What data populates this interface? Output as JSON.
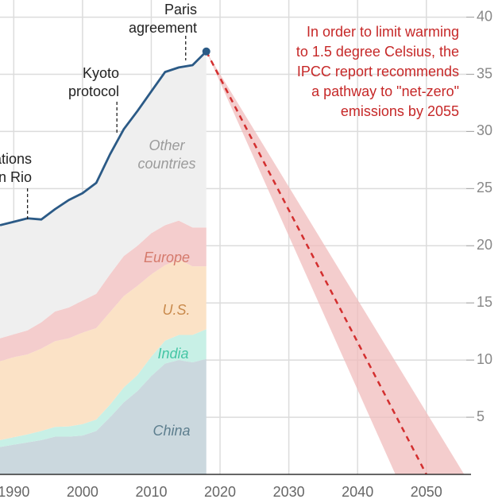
{
  "chart_data": {
    "type": "stacked-area",
    "x": [
      1988,
      1990,
      1992,
      1994,
      1996,
      1998,
      2000,
      2002,
      2004,
      2006,
      2008,
      2010,
      2012,
      2014,
      2016,
      2018
    ],
    "series": [
      {
        "name": "China",
        "color": "#cbd8de",
        "label_color": "#5d7e8e",
        "values": [
          2.4,
          2.6,
          2.8,
          3.0,
          3.3,
          3.3,
          3.4,
          3.8,
          5.0,
          6.3,
          7.3,
          8.6,
          9.7,
          10.0,
          9.8,
          10.1
        ]
      },
      {
        "name": "India",
        "color": "#c8f0e6",
        "label_color": "#45c6a5",
        "values": [
          0.6,
          0.65,
          0.7,
          0.8,
          0.85,
          0.9,
          1.0,
          1.0,
          1.1,
          1.3,
          1.4,
          1.7,
          2.0,
          2.2,
          2.4,
          2.6
        ]
      },
      {
        "name": "U.S.",
        "color": "#fbe2c6",
        "label_color": "#c98a4c",
        "values": [
          6.9,
          7.0,
          7.0,
          7.2,
          7.5,
          7.7,
          8.0,
          8.0,
          8.1,
          8.0,
          7.8,
          7.2,
          6.6,
          6.6,
          6.0,
          5.5
        ]
      },
      {
        "name": "Europe",
        "color": "#f4cdcd",
        "label_color": "#d57a6c",
        "values": [
          2.0,
          2.0,
          2.1,
          2.3,
          2.6,
          2.7,
          2.8,
          3.0,
          3.3,
          3.5,
          3.5,
          3.6,
          3.5,
          3.4,
          3.4,
          3.4
        ]
      },
      {
        "name": "Other countries",
        "color": "#efefef",
        "label_color": "#9b9b9b",
        "values": [
          9.9,
          9.85,
          9.8,
          9.0,
          8.95,
          9.4,
          9.4,
          9.7,
          10.5,
          11.1,
          11.8,
          12.4,
          13.4,
          13.4,
          14.2,
          15.4
        ]
      }
    ],
    "line": {
      "color": "#2b5a86",
      "values": [
        21.8,
        22.1,
        22.4,
        22.3,
        23.2,
        24.0,
        24.6,
        25.5,
        28.0,
        30.2,
        31.8,
        33.5,
        35.2,
        35.6,
        35.8,
        37.0
      ]
    },
    "projection": {
      "color": "#d32f2f",
      "band_color": "#f0bcbc",
      "x": [
        2018,
        2050
      ],
      "values": [
        37.0,
        0
      ],
      "band_x": [
        2018,
        2045.5,
        2055.5
      ],
      "band_values": [
        37.0,
        0,
        0
      ]
    },
    "events": [
      {
        "x": 1992,
        "lines": [
          "United Nations",
          "Summit in Rio"
        ]
      },
      {
        "x": 2005,
        "lines": [
          "Kyoto",
          "protocol"
        ]
      },
      {
        "x": 2015,
        "lines": [
          "Paris",
          "agreement"
        ]
      }
    ],
    "annotation": [
      "In order to limit warming",
      "to 1.5 degree Celsius, the",
      "IPCC report recommends",
      "a pathway to \"net-zero\"",
      "emissions by 2055"
    ],
    "xlim": [
      1988,
      2061
    ],
    "ylim": [
      0,
      41.5
    ],
    "xticks": [
      1990,
      2000,
      2010,
      2020,
      2030,
      2040,
      2050
    ],
    "yticks": [
      5,
      10,
      15,
      20,
      25,
      30,
      35,
      40
    ],
    "grid": true
  }
}
